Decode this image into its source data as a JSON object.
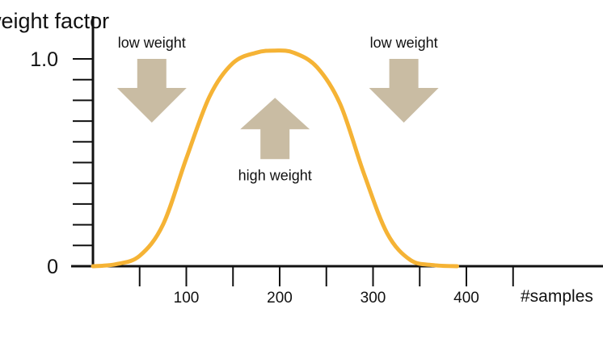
{
  "chart_data": {
    "type": "line",
    "ylabel": "weight factor",
    "xlabel": "#samples",
    "xlim": [
      -10,
      450
    ],
    "ylim": [
      0,
      1.2
    ],
    "y_tick_labels": [
      "0",
      "1.0"
    ],
    "y_tick_values": [
      0,
      1.0
    ],
    "y_minor_ticks": [
      0.1,
      0.2,
      0.3,
      0.4,
      0.5,
      0.6,
      0.7,
      0.8,
      0.9
    ],
    "x_tick_labels": [
      "100",
      "200",
      "300",
      "400"
    ],
    "x_tick_values": [
      100,
      200,
      300,
      400
    ],
    "x_minor_ticks": [
      50,
      150,
      250,
      350,
      450
    ],
    "grid": false,
    "series": [
      {
        "color": "#F5B335",
        "x": [
          0,
          25,
          50,
          75,
          100,
          125,
          150,
          175,
          195,
          215,
          240,
          265,
          290,
          315,
          340,
          365,
          390
        ],
        "y": [
          0.0,
          0.01,
          0.05,
          0.2,
          0.52,
          0.82,
          0.98,
          1.03,
          1.04,
          1.03,
          0.96,
          0.78,
          0.45,
          0.16,
          0.03,
          0.005,
          0.0
        ]
      }
    ],
    "annotations": [
      {
        "text": "low weight",
        "arrow": "down",
        "x": 63,
        "y": 1.0
      },
      {
        "text": "high weight",
        "arrow": "up",
        "x": 195,
        "y": 0.82
      },
      {
        "text": "low weight",
        "arrow": "down",
        "x": 333,
        "y": 1.0
      }
    ],
    "colors": {
      "curve": "#F5B335",
      "arrow": "#C9BCA3",
      "axis": "#111111"
    }
  }
}
